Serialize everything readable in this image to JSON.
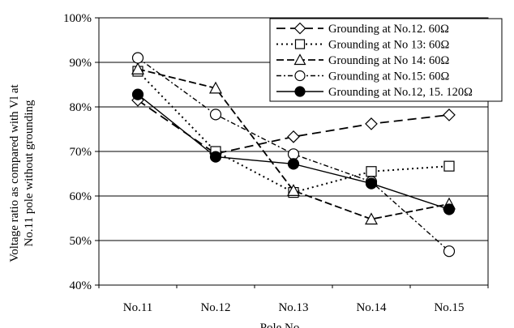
{
  "chart_data": {
    "type": "line",
    "title": "",
    "xlabel": "Pole No",
    "ylabel_lines": [
      "Voltage ratio as compared with Vl at",
      "No.11 pole without grounding"
    ],
    "categories": [
      "No.11",
      "No.12",
      "No.13",
      "No.14",
      "No.15"
    ],
    "ylim": [
      40,
      100
    ],
    "yticks": [
      40,
      50,
      60,
      70,
      80,
      90,
      100
    ],
    "ytick_labels": [
      "40%",
      "50%",
      "60%",
      "70%",
      "80%",
      "90%",
      "100%"
    ],
    "grid": "horizontal",
    "legend_position": "top-right",
    "series": [
      {
        "name": "Grounding at No.12. 60Ω",
        "values": [
          81.5,
          69.5,
          73.3,
          76.2,
          78.2
        ],
        "marker": "diamond",
        "dash": "11,6",
        "width": 1.8
      },
      {
        "name": "Grounding at No 13: 60Ω",
        "values": [
          88,
          70,
          60.8,
          65.5,
          66.7
        ],
        "marker": "square",
        "dash": "2,4",
        "width": 2
      },
      {
        "name": "Grounding at No 14: 60Ω",
        "values": [
          88.5,
          84.2,
          61.2,
          54.8,
          58.2
        ],
        "marker": "triangle",
        "dash": "9,4",
        "width": 1.8
      },
      {
        "name": "Grounding at No.15: 60Ω",
        "values": [
          91,
          78.3,
          69.4,
          63.2,
          47.6
        ],
        "marker": "circle",
        "dash": "6,3,2,3",
        "width": 1.4
      },
      {
        "name": "Grounding at No.12, 15. 120Ω",
        "values": [
          82.8,
          68.8,
          67.2,
          62.8,
          57
        ],
        "marker": "filled-circle",
        "dash": "",
        "width": 1.4
      }
    ]
  }
}
